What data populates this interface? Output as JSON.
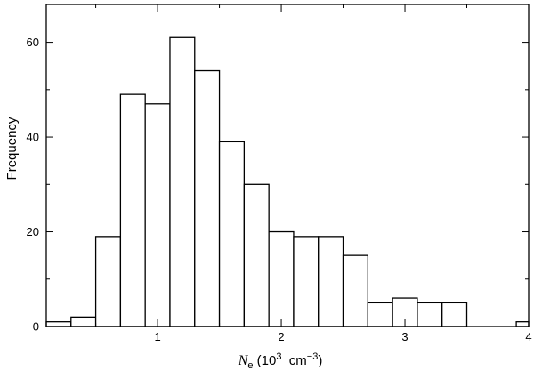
{
  "chart_data": {
    "type": "bar",
    "bin_edges": [
      0.1,
      0.3,
      0.5,
      0.7,
      0.9,
      1.1,
      1.3,
      1.5,
      1.7,
      1.9,
      2.1,
      2.3,
      2.5,
      2.7,
      2.9,
      3.1,
      3.3,
      3.5,
      3.7,
      3.9,
      4.1
    ],
    "values": [
      1,
      2,
      19,
      49,
      47,
      61,
      54,
      39,
      30,
      20,
      19,
      19,
      15,
      5,
      6,
      5,
      5,
      0,
      0,
      1
    ],
    "xlim": [
      0.1,
      4.0
    ],
    "ylim": [
      0,
      68
    ],
    "x_ticks": [
      1,
      2,
      3,
      4
    ],
    "y_ticks": [
      0,
      20,
      40,
      60
    ],
    "x_minor_step": 0.5,
    "y_minor_step": 10,
    "ylabel": "Frequency",
    "xlabel": {
      "symbol": "N",
      "subscript": "e",
      "prefix": " (10",
      "exp1": "3",
      "unit": "  cm",
      "exp2": "−3",
      "suffix": ")"
    },
    "grid": false,
    "legend": "none"
  }
}
